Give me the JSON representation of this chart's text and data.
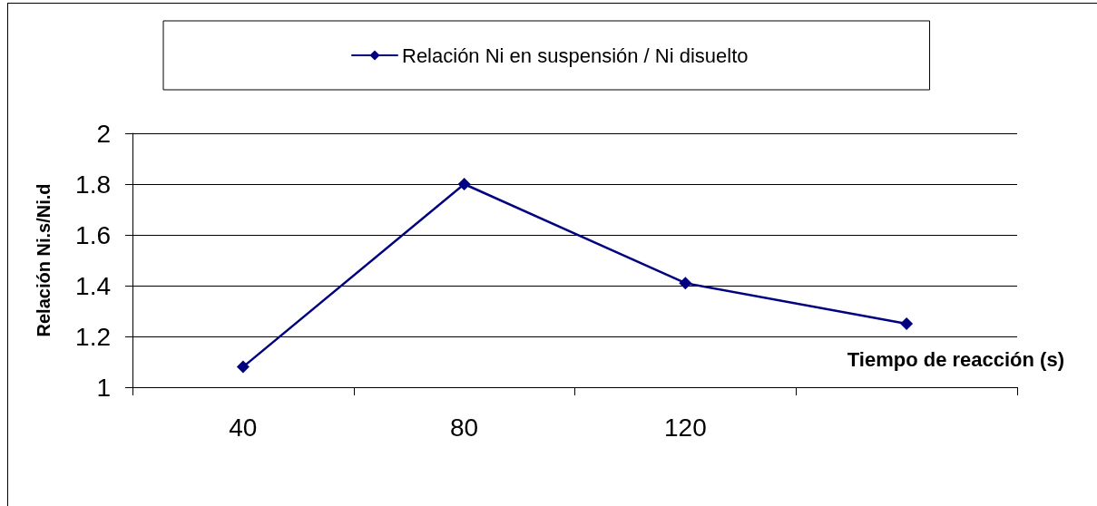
{
  "chart_data": {
    "type": "line",
    "xlabel": "Tiempo de reacción (s)",
    "ylabel": "Relación Ni.s/Ni.d",
    "categories": [
      "40",
      "80",
      "120",
      null
    ],
    "series": [
      {
        "name": "Relación Ni en suspensión / Ni disuelto",
        "color": "#000080",
        "values": [
          1.08,
          1.8,
          1.41,
          1.25
        ]
      }
    ],
    "ylim": [
      1,
      2
    ],
    "yticks": [
      1,
      1.2,
      1.4,
      1.6,
      1.8,
      2
    ],
    "grid": "y",
    "legend": "top",
    "marker": "diamond",
    "line_style": "solid"
  }
}
